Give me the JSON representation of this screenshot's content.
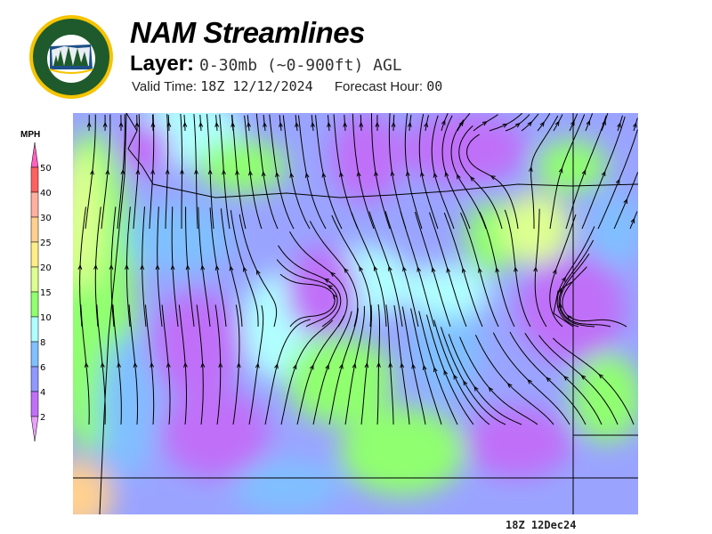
{
  "header": {
    "logo_text": "OREGON DEPARTMENT OF FORESTRY",
    "title": "NAM Streamlines",
    "layer_label": "Layer:",
    "layer_value": "0-30mb (~0-900ft) AGL",
    "valid_label": "Valid Time:",
    "valid_value": "18Z 12/12/2024",
    "forecast_label": "Forecast Hour:",
    "forecast_value": "00"
  },
  "legend": {
    "unit": "MPH",
    "over_color": "#ff60c0",
    "under_color": "#e8a0f8",
    "bins": [
      {
        "label": "50",
        "color": "#ff6060"
      },
      {
        "label": "40",
        "color": "#ffb0a0"
      },
      {
        "label": "30",
        "color": "#ffd090"
      },
      {
        "label": "25",
        "color": "#ffee88"
      },
      {
        "label": "20",
        "color": "#ddff90"
      },
      {
        "label": "15",
        "color": "#90ff70"
      },
      {
        "label": "10",
        "color": "#b0ffff"
      },
      {
        "label": "8",
        "color": "#80c0ff"
      },
      {
        "label": "6",
        "color": "#9098ff"
      },
      {
        "label": "4",
        "color": "#c070f8"
      },
      {
        "label": "2",
        "color": ""
      }
    ]
  },
  "map": {
    "field": "wind speed shading with streamlines",
    "stamp": "18Z 12Dec24"
  }
}
